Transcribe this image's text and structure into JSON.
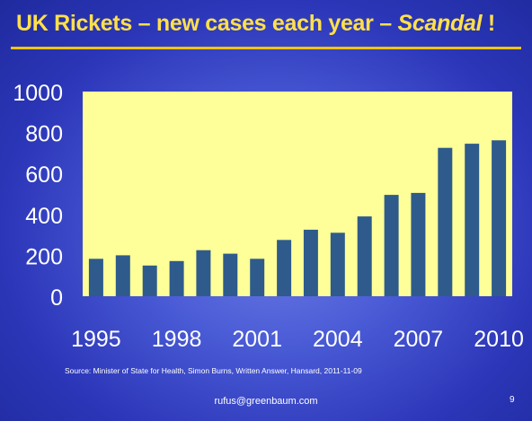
{
  "slide": {
    "title_main": "UK Rickets – new cases each year – ",
    "title_emph": "Scandal",
    "title_end": " !",
    "source": "Source:   Minister of State for Health, Simon Burns, Written Answer, Hansard, 2011-11-09",
    "email": "rufus@greenbaum.com",
    "page_number": "9"
  },
  "colors": {
    "background": "#3344c4",
    "title": "#ffe04a",
    "plot_area": "#ffff99",
    "bar": "#2e5b8c"
  },
  "chart_data": {
    "type": "bar",
    "title": "UK Rickets – new cases each year – Scandal !",
    "categories": [
      "1995",
      "1996",
      "1997",
      "1998",
      "1999",
      "2000",
      "2001",
      "2002",
      "2003",
      "2004",
      "2005",
      "2006",
      "2007",
      "2008",
      "2009",
      "2010"
    ],
    "values": [
      183,
      200,
      150,
      172,
      225,
      208,
      183,
      275,
      325,
      310,
      390,
      495,
      505,
      725,
      745,
      762
    ],
    "x_tick_labels": [
      "1995",
      "1998",
      "2001",
      "2004",
      "2007",
      "2010"
    ],
    "y_tick_labels": [
      "0",
      "200",
      "400",
      "600",
      "800",
      "1000"
    ],
    "ylim": [
      0,
      1000
    ],
    "xlabel": "",
    "ylabel": "",
    "grid": false,
    "legend": "none"
  }
}
